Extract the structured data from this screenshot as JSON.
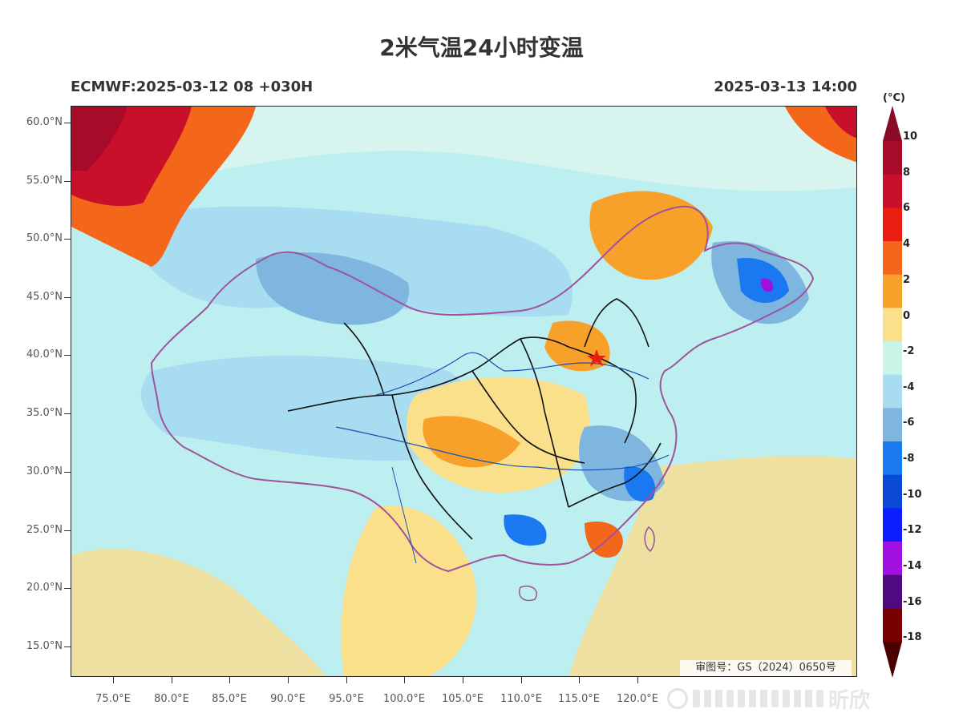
{
  "header": {
    "title": "2米气温24小时变温",
    "model_run": "ECMWF:2025-03-12 08 +030H",
    "valid_time": "2025-03-13 14:00"
  },
  "axes": {
    "lat_labels": [
      "60.0°N",
      "55.0°N",
      "50.0°N",
      "45.0°N",
      "40.0°N",
      "35.0°N",
      "30.0°N",
      "25.0°N",
      "20.0°N",
      "15.0°N"
    ],
    "lon_labels": [
      "75.0°E",
      "80.0°E",
      "85.0°E",
      "90.0°E",
      "95.0°E",
      "100.0°E",
      "105.0°E",
      "110.0°E",
      "115.0°E",
      "120.0°E"
    ]
  },
  "approval_number": "审图号：GS（2024）0650号",
  "colorbar": {
    "unit": "(°C)",
    "labels": [
      "10",
      "8",
      "6",
      "4",
      "2",
      "0",
      "-2",
      "-4",
      "-6",
      "-8",
      "-10",
      "-12",
      "-14",
      "-16",
      "-18"
    ],
    "colors": [
      "#a80a2a",
      "#c8102a",
      "#e81e10",
      "#f4661a",
      "#f7a12a",
      "#fbe08c",
      "#c8f5e8",
      "#a8dcf0",
      "#7eb6e0",
      "#1a78f0",
      "#0a4ad2",
      "#0a1eff",
      "#a010e0",
      "#500a80",
      "#7a0000"
    ],
    "top_arrow_color": "#8a0b26",
    "bottom_arrow_color": "#4a0000"
  },
  "legend_colors": {
    "warm_strong": "#c8102a",
    "warm_mid": "#f4661a",
    "warm_light": "#f7a12a",
    "neutral": "#fbe08c",
    "cool_light": "#a8dcf0",
    "cool_mid": "#7eb6e0",
    "cold": "#1a78f0",
    "very_cold": "#a010e0",
    "ocean_neutral": "#ede0a0",
    "china_border": "#a0529a",
    "province_border": "#111111",
    "river": "#1a50b4",
    "capital_marker": "#e81e10"
  },
  "icons": {
    "capital_marker": "star-icon",
    "colorbar_top": "arrow-up-icon",
    "colorbar_bottom": "arrow-down-icon"
  },
  "watermark": {
    "text": "昕欣"
  }
}
